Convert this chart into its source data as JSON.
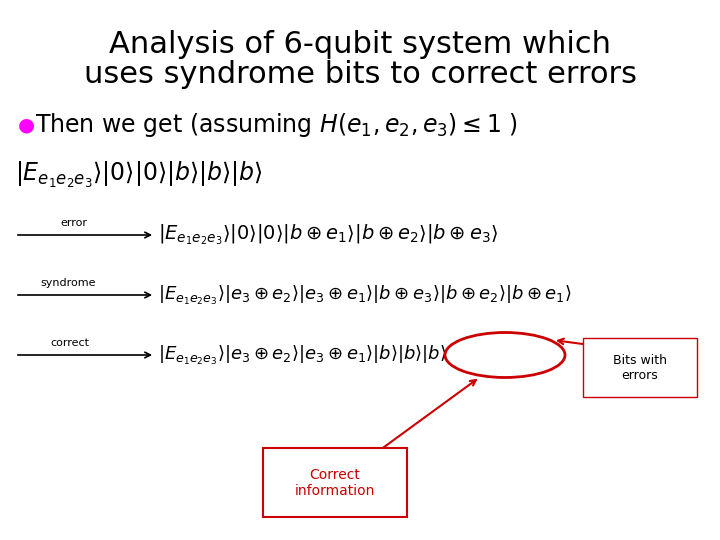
{
  "background_color": "#ffffff",
  "title_line1": "Analysis of 6-qubit system which",
  "title_line2": "uses syndrome bits to correct errors",
  "title_fontsize": 22,
  "title_color": "#000000",
  "title_font": "Comic Sans MS",
  "bullet_color": "#ff00ff",
  "bullet_fontsize": 17,
  "math_fontsize": 14,
  "red_color": "#cc0000"
}
